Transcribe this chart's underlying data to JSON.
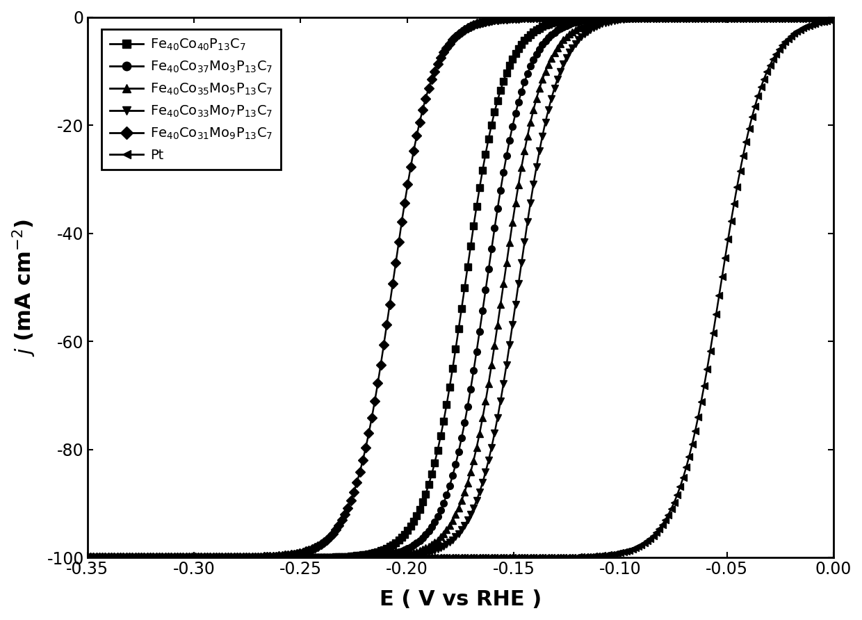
{
  "title": "",
  "xlabel": "E ( V vs RHE )",
  "xlim": [
    -0.35,
    0.0
  ],
  "ylim": [
    -100,
    0
  ],
  "xticks": [
    -0.35,
    -0.3,
    -0.25,
    -0.2,
    -0.15,
    -0.1,
    -0.05,
    0.0
  ],
  "yticks": [
    0,
    -20,
    -40,
    -60,
    -80,
    -100
  ],
  "series": [
    {
      "label": "Fe$_{40}$Co$_{40}$P$_{13}$C$_7$",
      "marker": "s",
      "E_half": -0.173,
      "steepness": 110,
      "color": "black"
    },
    {
      "label": "Fe$_{40}$Co$_{37}$Mo$_3$P$_{13}$C$_7$",
      "marker": "o",
      "E_half": -0.163,
      "steepness": 110,
      "color": "black"
    },
    {
      "label": "Fe$_{40}$Co$_{35}$Mo$_5$P$_{13}$C$_7$",
      "marker": "^",
      "E_half": -0.155,
      "steepness": 110,
      "color": "black"
    },
    {
      "label": "Fe$_{40}$Co$_{33}$Mo$_7$P$_{13}$C$_7$",
      "marker": "v",
      "E_half": -0.148,
      "steepness": 110,
      "color": "black"
    },
    {
      "label": "Fe$_{40}$Co$_{31}$Mo$_9$P$_{13}$C$_7$",
      "marker": "D",
      "E_half": -0.207,
      "steepness": 110,
      "color": "black"
    },
    {
      "label": "Pt",
      "marker": "<",
      "E_half": -0.053,
      "steepness": 100,
      "color": "black"
    }
  ],
  "j_limit": -100,
  "marker_every": 8,
  "marker_size": 7,
  "line_width": 1.8,
  "background_color": "white",
  "figsize": [
    12.4,
    8.92
  ],
  "dpi": 100
}
